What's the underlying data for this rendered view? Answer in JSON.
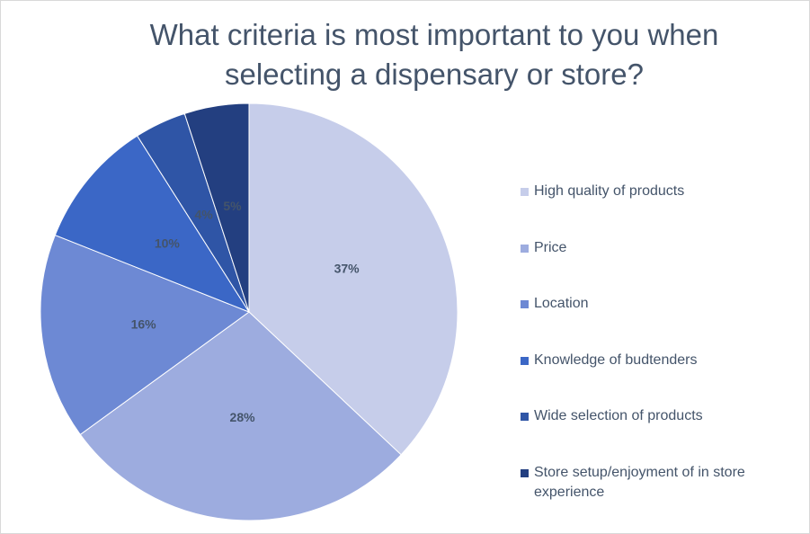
{
  "chart_data": {
    "type": "pie",
    "title": "What criteria is most important to you when selecting a dispensary or store?",
    "categories": [
      "High quality of products",
      "Price",
      "Location",
      "Knowledge of budtenders",
      "Wide selection of products",
      "Store setup/enjoyment of in store experience"
    ],
    "values": [
      37,
      28,
      16,
      10,
      4,
      5
    ],
    "value_labels": [
      "37%",
      "28%",
      "16%",
      "10%",
      "4%",
      "5%"
    ],
    "colors": [
      "#c6cdea",
      "#9dacdf",
      "#6d89d4",
      "#3b67c6",
      "#2f55a6",
      "#233f80"
    ],
    "legend": "right"
  }
}
